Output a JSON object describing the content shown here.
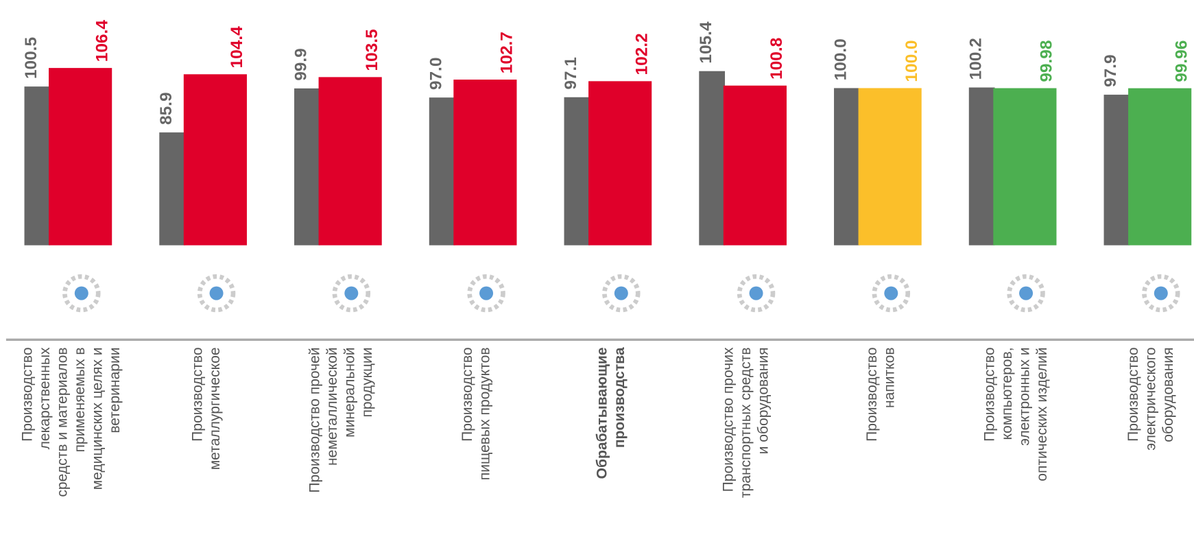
{
  "chart_data": {
    "type": "bar",
    "categories": [
      "Производство\nлекарственных\nсредств и материалов\nприменяемых в\nмедицинских целях и\nветеринарии",
      "Производство\nметаллургическое",
      "Производство прочей\nнеметаллической\nминеральной\nпродукции",
      "Производство\nпищевых продуктов",
      "Обрабатывающие\nпроизводства",
      "Производство  прочих\nтранспортных средств\nи оборудования",
      "Производство\nнапитков",
      "Производство\nкомпьютеров,\nэлектронных и\nоптических изделий",
      "Производство\nэлектрического\nоборудования"
    ],
    "emphasis_index": 4,
    "series": [
      {
        "color": "#666666",
        "values": [
          100.5,
          85.9,
          99.9,
          97.0,
          97.1,
          105.4,
          100.0,
          100.2,
          97.9
        ],
        "value_labels": [
          "100.5",
          "85.9",
          "99.9",
          "97.0",
          "97.1",
          "105.4",
          "100.0",
          "100.2",
          "97.9"
        ]
      },
      {
        "colors": [
          "#e0002a",
          "#e0002a",
          "#e0002a",
          "#e0002a",
          "#e0002a",
          "#e0002a",
          "#fbbf2a",
          "#4caf50",
          "#4caf50"
        ],
        "values": [
          106.4,
          104.4,
          103.5,
          102.7,
          102.2,
          100.8,
          100.0,
          99.98,
          99.96
        ],
        "value_labels": [
          "106.4",
          "104.4",
          "103.5",
          "102.7",
          "102.2",
          "100.8",
          "100.0",
          "99.98",
          "99.96"
        ]
      }
    ],
    "ylim": [
      50,
      128
    ]
  }
}
